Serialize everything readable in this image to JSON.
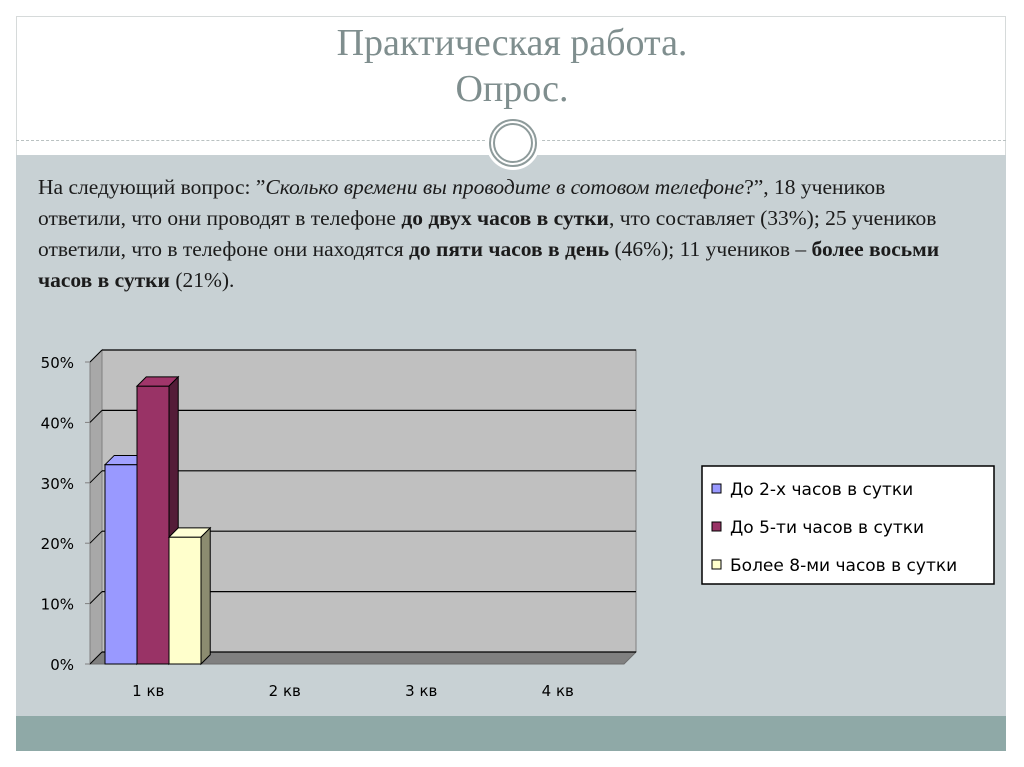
{
  "slide": {
    "title_line1": "Практическая работа.",
    "title_line2": "Опрос.",
    "text": {
      "p1": "На следующий вопрос: ”",
      "p2_italic": "Сколько времени вы проводите в сотовом телефоне",
      "p3": "?”, 18 учеников ответили, что они проводят в телефоне ",
      "p4_bold": "до двух часов в сутки",
      "p5": ", что составляет (33%); 25 учеников ответили, что в телефоне они находятся ",
      "p6_bold": "до пяти часов в день",
      "p7": " (46%); 11 учеников – ",
      "p8_bold": "более восьми часов в сутки",
      "p9": " (21%)."
    }
  },
  "colors": {
    "frame_border": "#d6dada",
    "content_bg": "#c8d1d4",
    "footer_band": "#8fa9a7",
    "title": "#7f8e8e",
    "plot_bg": "#c0c0c0"
  },
  "chart_data": {
    "type": "bar",
    "three_d": true,
    "categories": [
      "1 кв",
      "2 кв",
      "3 кв",
      "4 кв"
    ],
    "ylim": [
      0,
      50
    ],
    "yticks": [
      "0%",
      "10%",
      "20%",
      "30%",
      "40%",
      "50%"
    ],
    "ytick_values": [
      0,
      10,
      20,
      30,
      40,
      50
    ],
    "grid": true,
    "legend_position": "right",
    "series": [
      {
        "name": "До 2-х часов в сутки",
        "values": [
          33,
          null,
          null,
          null
        ],
        "color": "#9999ff"
      },
      {
        "name": "До 5-ти часов в сутки",
        "values": [
          46,
          null,
          null,
          null
        ],
        "color": "#993366"
      },
      {
        "name": "Более 8-ми часов в сутки",
        "values": [
          21,
          null,
          null,
          null
        ],
        "color": "#ffffcc"
      }
    ]
  }
}
